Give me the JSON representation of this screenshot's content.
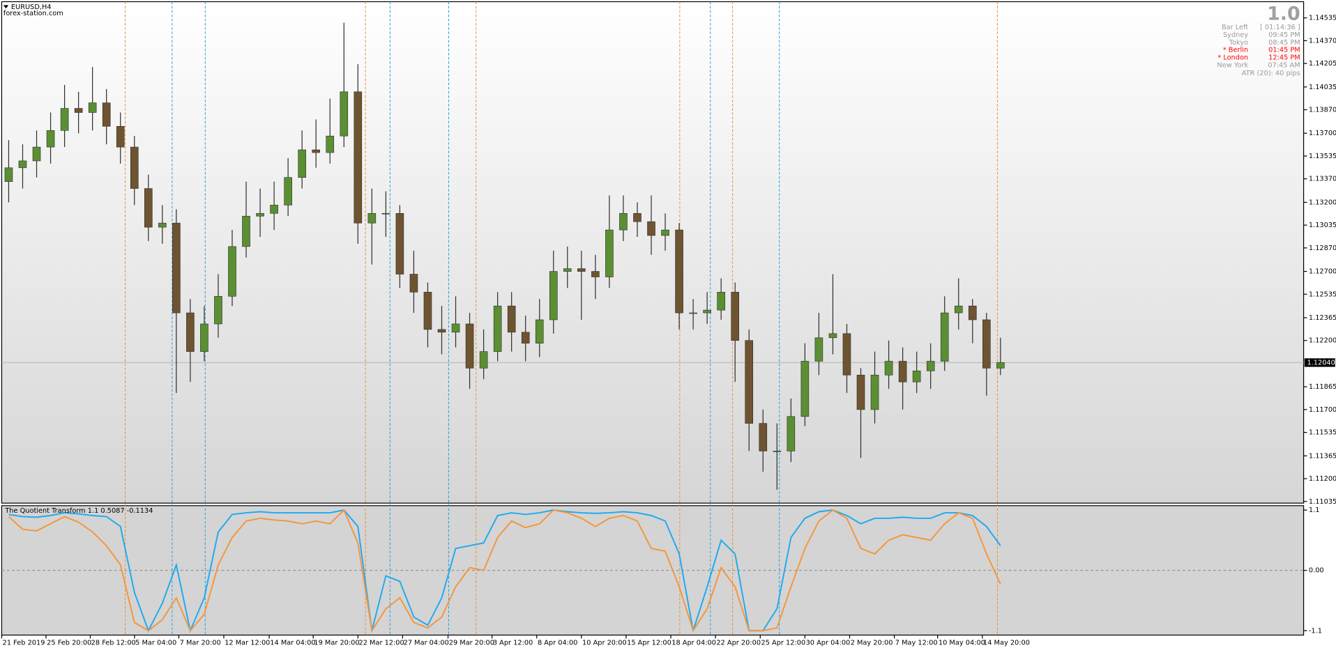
{
  "symbol": "EURUSD,H4",
  "source": "forex-station.com",
  "info_panel": {
    "version": "1.0",
    "rows": [
      {
        "label": "Bar Left",
        "value": "[ 01:14:36 ]",
        "color": "#9a9a9a"
      },
      {
        "label": "Sydney",
        "value": "09:45 PM",
        "color": "#9a9a9a"
      },
      {
        "label": "Tokyo",
        "value": "08:45 PM",
        "color": "#9a9a9a"
      },
      {
        "label": "* Berlin",
        "value": "01:45 PM",
        "color": "#ff0000"
      },
      {
        "label": "* London",
        "value": "12:45 PM",
        "color": "#ff0000"
      },
      {
        "label": "New York",
        "value": "07:45 AM",
        "color": "#9a9a9a"
      }
    ],
    "footer": "ATR (20): 40 pips"
  },
  "chart_data": [
    {
      "type": "candlestick",
      "up_color": "#5a8f32",
      "down_color": "#6e5430",
      "wick_color": "#2f2f2f",
      "xlim": [
        0,
        93.2
      ],
      "ylim": [
        1.11023,
        1.14652
      ],
      "open": [
        1.1335,
        1.1345,
        1.135,
        1.136,
        1.1372,
        1.1388,
        1.1385,
        1.1392,
        1.1375,
        1.136,
        1.133,
        1.1302,
        1.1305,
        1.124,
        1.1212,
        1.1232,
        1.1252,
        1.1288,
        1.131,
        1.1312,
        1.1318,
        1.1338,
        1.1358,
        1.1356,
        1.1368,
        1.14,
        1.1305,
        1.1312,
        1.1312,
        1.1268,
        1.1255,
        1.1228,
        1.1226,
        1.1232,
        1.12,
        1.1212,
        1.1245,
        1.1226,
        1.1218,
        1.1235,
        1.127,
        1.1272,
        1.127,
        1.1266,
        1.13,
        1.1312,
        1.1306,
        1.1296,
        1.13,
        1.124,
        1.124,
        1.1242,
        1.1255,
        1.122,
        1.116,
        1.114,
        1.114,
        1.1165,
        1.1205,
        1.1222,
        1.1225,
        1.1195,
        1.117,
        1.1195,
        1.1205,
        1.119,
        1.1198,
        1.1205,
        1.124,
        1.1245,
        1.1235,
        1.12
      ],
      "high": [
        1.1365,
        1.1362,
        1.1372,
        1.1385,
        1.1405,
        1.14,
        1.1418,
        1.1402,
        1.1385,
        1.1368,
        1.134,
        1.1318,
        1.1315,
        1.125,
        1.1245,
        1.1268,
        1.13,
        1.1335,
        1.133,
        1.1335,
        1.1352,
        1.1372,
        1.138,
        1.1395,
        1.145,
        1.142,
        1.133,
        1.1328,
        1.1318,
        1.1285,
        1.1262,
        1.1245,
        1.1252,
        1.124,
        1.1228,
        1.1255,
        1.1255,
        1.1238,
        1.125,
        1.1285,
        1.1288,
        1.1285,
        1.1282,
        1.1325,
        1.1325,
        1.132,
        1.1325,
        1.1312,
        1.1305,
        1.125,
        1.1255,
        1.1265,
        1.1262,
        1.1228,
        1.117,
        1.116,
        1.1178,
        1.1218,
        1.124,
        1.1268,
        1.1232,
        1.12,
        1.1212,
        1.122,
        1.1215,
        1.1212,
        1.1218,
        1.1252,
        1.1265,
        1.125,
        1.124,
        1.1222
      ],
      "low": [
        1.132,
        1.133,
        1.1338,
        1.1348,
        1.136,
        1.137,
        1.1372,
        1.1362,
        1.1348,
        1.1318,
        1.1292,
        1.129,
        1.1182,
        1.119,
        1.1205,
        1.1222,
        1.1245,
        1.128,
        1.1295,
        1.13,
        1.131,
        1.133,
        1.1345,
        1.1348,
        1.136,
        1.129,
        1.1275,
        1.1295,
        1.1258,
        1.124,
        1.1215,
        1.121,
        1.1215,
        1.1185,
        1.1192,
        1.1205,
        1.1212,
        1.1205,
        1.1208,
        1.1225,
        1.1258,
        1.1235,
        1.125,
        1.1258,
        1.1292,
        1.1295,
        1.1282,
        1.1285,
        1.1228,
        1.1228,
        1.1232,
        1.1235,
        1.119,
        1.114,
        1.1125,
        1.1112,
        1.1132,
        1.1158,
        1.1195,
        1.121,
        1.1182,
        1.1135,
        1.116,
        1.1185,
        1.117,
        1.1182,
        1.1185,
        1.1198,
        1.1228,
        1.1218,
        1.118,
        1.1195
      ],
      "close": [
        1.1345,
        1.135,
        1.136,
        1.1372,
        1.1388,
        1.1385,
        1.1392,
        1.1375,
        1.136,
        1.133,
        1.1302,
        1.1305,
        1.124,
        1.1212,
        1.1232,
        1.1252,
        1.1288,
        1.131,
        1.1312,
        1.1318,
        1.1338,
        1.1358,
        1.1356,
        1.1368,
        1.14,
        1.1305,
        1.1312,
        1.1312,
        1.1268,
        1.1255,
        1.1228,
        1.1226,
        1.1232,
        1.12,
        1.1212,
        1.1245,
        1.1226,
        1.1218,
        1.1235,
        1.127,
        1.1272,
        1.127,
        1.1266,
        1.13,
        1.1312,
        1.1306,
        1.1296,
        1.13,
        1.124,
        1.124,
        1.1242,
        1.1255,
        1.122,
        1.116,
        1.114,
        1.114,
        1.1165,
        1.1205,
        1.1222,
        1.1225,
        1.1195,
        1.117,
        1.1195,
        1.1205,
        1.119,
        1.1198,
        1.1205,
        1.124,
        1.1245,
        1.1235,
        1.12,
        1.1204
      ],
      "yticks": [
        1.14535,
        {
          "value": 1.1437,
          "label": "1.14370"
        },
        1.14205,
        1.14035,
        {
          "value": 1.1387,
          "label": "1.13870"
        },
        {
          "value": 1.137,
          "label": "1.13700"
        },
        1.13535,
        {
          "value": 1.1337,
          "label": "1.13370"
        },
        {
          "value": 1.132,
          "label": "1.13200"
        },
        1.13035,
        {
          "value": 1.1287,
          "label": "1.12870"
        },
        {
          "value": 1.127,
          "label": "1.12700"
        },
        1.12535,
        1.12365,
        {
          "value": 1.122,
          "label": "1.12200"
        },
        1.11865,
        {
          "value": 1.117,
          "label": "1.11700"
        },
        1.11535,
        1.11365,
        {
          "value": 1.112,
          "label": "1.11200"
        },
        1.11035
      ],
      "current_price": {
        "value": 1.1204,
        "label": "1.12040"
      },
      "xticks": [
        {
          "value": 0,
          "label": "21 Feb 2019"
        },
        {
          "value": 3.17,
          "label": "25 Feb 20:00"
        },
        {
          "value": 6.34,
          "label": "28 Feb 12:00"
        },
        {
          "value": 9.51,
          "label": "5 Mar 04:00"
        },
        {
          "value": 12.68,
          "label": "7 Mar 20:00"
        },
        {
          "value": 15.9,
          "label": "12 Mar 12:00"
        },
        {
          "value": 19.15,
          "label": "14 Mar 04:00"
        },
        {
          "value": 22.3,
          "label": "19 Mar 20:00"
        },
        {
          "value": 25.5,
          "label": "22 Mar 12:00"
        },
        {
          "value": 28.7,
          "label": "27 Mar 04:00"
        },
        {
          "value": 31.95,
          "label": "29 Mar 20:00"
        },
        {
          "value": 35.1,
          "label": "3 Apr 12:00"
        },
        {
          "value": 38.3,
          "label": "8 Apr 04:00"
        },
        {
          "value": 41.5,
          "label": "10 Apr 20:00"
        },
        {
          "value": 44.7,
          "label": "15 Apr 12:00"
        },
        {
          "value": 47.9,
          "label": "18 Apr 04:00"
        },
        {
          "value": 51.1,
          "label": "22 Apr 20:00"
        },
        {
          "value": 54.3,
          "label": "25 Apr 12:00"
        },
        {
          "value": 57.5,
          "label": "30 Apr 04:00"
        },
        {
          "value": 60.7,
          "label": "2 May 20:00"
        },
        {
          "value": 63.9,
          "label": "7 May 12:00"
        },
        {
          "value": 67.0,
          "label": "10 May 04:00"
        },
        {
          "value": 70.2,
          "label": "14 May 20:00"
        }
      ],
      "session_lines": [
        {
          "x": 8.84,
          "color": "#f08c28"
        },
        {
          "x": 26.04,
          "color": "#f08c28"
        },
        {
          "x": 33.96,
          "color": "#f08c28"
        },
        {
          "x": 48.54,
          "color": "#f08c28"
        },
        {
          "x": 52.32,
          "color": "#f08c28"
        },
        {
          "x": 71.28,
          "color": "#f08c28"
        },
        {
          "x": 12.2,
          "color": "#1ea0e0"
        },
        {
          "x": 14.57,
          "color": "#1ea0e0"
        },
        {
          "x": 27.8,
          "color": "#1ea0e0"
        },
        {
          "x": 32.0,
          "color": "#1ea0e0"
        },
        {
          "x": 50.73,
          "color": "#1ea0e0"
        },
        {
          "x": 55.67,
          "color": "#1ea0e0"
        }
      ]
    },
    {
      "type": "line",
      "title": "The Quotient Transform 1.1 0.5087 -0.1134",
      "xlim": [
        0,
        93.2
      ],
      "ylim": [
        -1.18,
        1.18
      ],
      "yticks": [
        1.1,
        {
          "value": 0,
          "label": "0.00"
        },
        -1.1
      ],
      "series": [
        {
          "color": "#1eaaf0",
          "values": [
            1.02,
            0.98,
            0.97,
            1.0,
            1.05,
            1.03,
            1.0,
            0.98,
            0.8,
            -0.4,
            -1.1,
            -0.6,
            0.1,
            -1.1,
            -0.5,
            0.7,
            1.02,
            1.05,
            1.07,
            1.05,
            1.05,
            1.05,
            1.05,
            1.05,
            1.1,
            0.8,
            -1.1,
            -0.1,
            -0.2,
            -0.85,
            -1.0,
            -0.5,
            0.4,
            0.45,
            0.5,
            1.0,
            1.05,
            1.02,
            1.05,
            1.1,
            1.07,
            1.05,
            1.04,
            1.05,
            1.07,
            1.05,
            1.0,
            0.9,
            0.3,
            -1.1,
            -0.3,
            0.55,
            0.3,
            -1.1,
            -1.1,
            -0.7,
            0.6,
            0.95,
            1.07,
            1.1,
            1.0,
            0.85,
            0.95,
            0.95,
            0.97,
            0.95,
            0.95,
            1.05,
            1.05,
            1.0,
            0.8,
            0.45
          ]
        },
        {
          "color": "#f5963c",
          "values": [
            0.98,
            0.75,
            0.72,
            0.85,
            0.98,
            0.88,
            0.7,
            0.45,
            0.1,
            -0.95,
            -1.1,
            -0.9,
            -0.5,
            -1.1,
            -0.8,
            0.1,
            0.6,
            0.9,
            0.95,
            0.92,
            0.9,
            0.85,
            0.9,
            0.85,
            1.1,
            0.5,
            -1.1,
            -0.7,
            -0.5,
            -0.95,
            -1.05,
            -0.85,
            -0.3,
            0.05,
            0.0,
            0.6,
            0.9,
            0.78,
            0.85,
            1.1,
            1.05,
            0.95,
            0.8,
            0.95,
            1.0,
            0.9,
            0.4,
            0.35,
            -0.3,
            -1.1,
            -0.7,
            0.05,
            -0.3,
            -1.1,
            -1.1,
            -1.05,
            -0.3,
            0.4,
            0.9,
            1.1,
            0.95,
            0.4,
            0.3,
            0.55,
            0.65,
            0.6,
            0.55,
            0.85,
            1.05,
            0.95,
            0.3,
            -0.25
          ]
        }
      ]
    }
  ]
}
